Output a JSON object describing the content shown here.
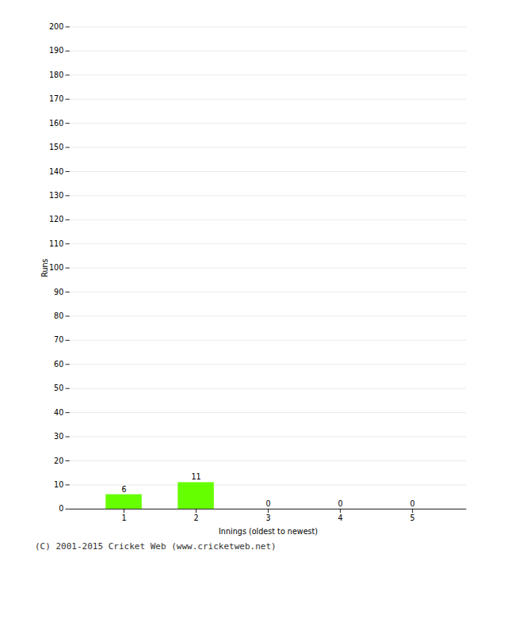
{
  "chart_data": {
    "type": "bar",
    "xlabel": "Innings (oldest to newest)",
    "ylabel": "Runs",
    "categories": [
      1,
      2,
      3,
      4,
      5
    ],
    "values": [
      6,
      11,
      0,
      0,
      0
    ],
    "color": "#66ff00",
    "ylim": [
      0,
      200
    ],
    "yticks": [
      0,
      10,
      20,
      30,
      40,
      50,
      60,
      70,
      80,
      90,
      100,
      110,
      120,
      130,
      140,
      150,
      160,
      170,
      180,
      190,
      200
    ],
    "grid": true,
    "data_labels": true,
    "caption": "(C) 2001-2015 Cricket Web (www.cricketweb.net)"
  }
}
